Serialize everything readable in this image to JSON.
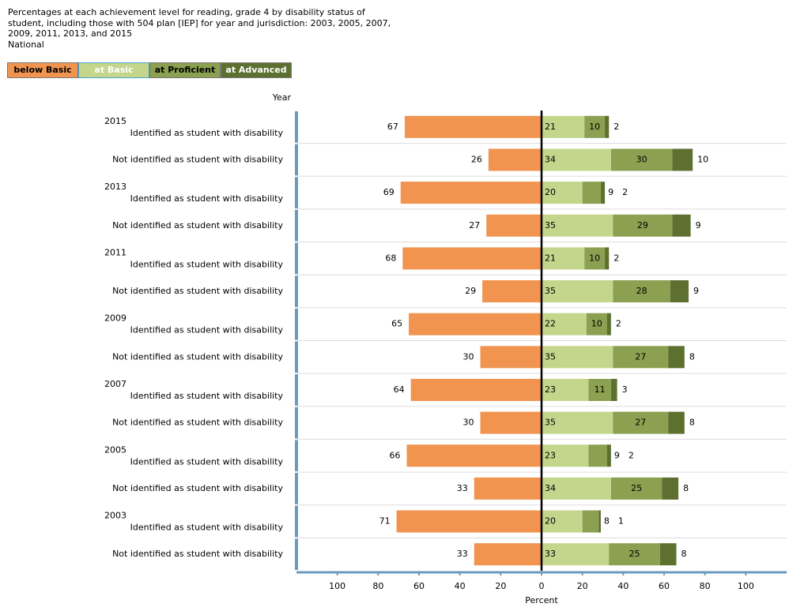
{
  "chart_data": {
    "type": "diverging-stacked-bar",
    "title": "Percentages at each achievement level for reading, grade 4 by disability status of student, including those with 504 plan [IEP] for year and jurisdiction: 2003, 2005, 2007, 2009, 2011, 2013, and 2015",
    "subtitle": "National",
    "y_header": "Year",
    "xlabel": "Percent",
    "year_labels": [
      "2015",
      null,
      "2013",
      null,
      "2011",
      null,
      "2009",
      null,
      "2007",
      null,
      "2005",
      null,
      "2003",
      null
    ],
    "categories": [
      "Identified as student with disability",
      "Not identified as student with disability",
      "Identified as student with disability",
      "Not identified as student with disability",
      "Identified as student with disability",
      "Not identified as student with disability",
      "Identified as student with disability",
      "Not identified as student with disability",
      "Identified as student with disability",
      "Not identified as student with disability",
      "Identified as student with disability",
      "Not identified as student with disability",
      "Identified as student with disability",
      "Not identified as student with disability"
    ],
    "series": [
      {
        "name": "below Basic",
        "color": "#f0944f",
        "values": [
          -67,
          -26,
          -69,
          -27,
          -68,
          -29,
          -65,
          -30,
          -64,
          -30,
          -66,
          -33,
          -71,
          -33
        ],
        "value_labels": [
          "67",
          "26",
          "69",
          "27",
          "68",
          "29",
          "65",
          "30",
          "64",
          "30",
          "66",
          "33",
          "71",
          "33"
        ]
      },
      {
        "name": "at Basic",
        "color": "#c3d68c",
        "values": [
          21,
          34,
          20,
          35,
          21,
          35,
          22,
          35,
          23,
          35,
          23,
          34,
          20,
          33
        ]
      },
      {
        "name": "at Proficient",
        "color": "#8ba050",
        "values": [
          10,
          30,
          9,
          29,
          10,
          28,
          10,
          27,
          11,
          27,
          9,
          25,
          8,
          25
        ]
      },
      {
        "name": "at Advanced",
        "color": "#5d7030",
        "values": [
          2,
          10,
          2,
          9,
          2,
          9,
          2,
          8,
          3,
          8,
          2,
          8,
          1,
          8
        ]
      }
    ],
    "xlim": [
      -120,
      120
    ],
    "xticks": [
      {
        "value": -100,
        "label": "100"
      },
      {
        "value": -80,
        "label": "80"
      },
      {
        "value": -60,
        "label": "60"
      },
      {
        "value": -40,
        "label": "40"
      },
      {
        "value": -20,
        "label": "20"
      },
      0,
      20,
      40,
      60,
      80,
      100
    ]
  }
}
